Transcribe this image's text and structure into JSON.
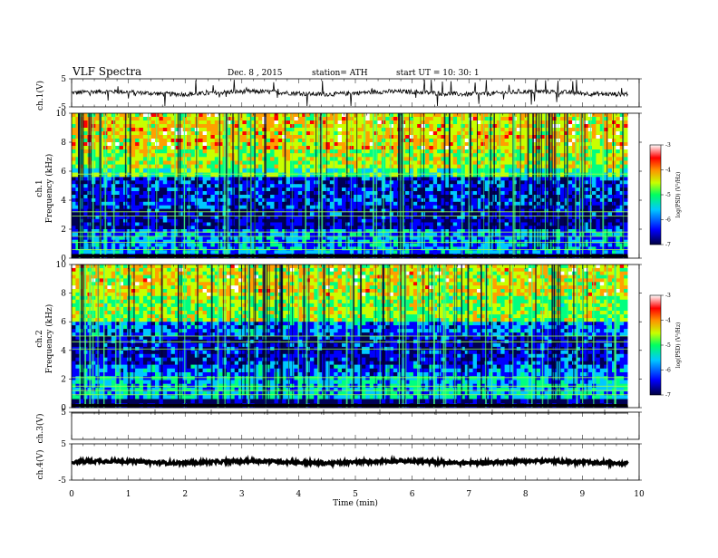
{
  "header": {
    "title": "VLF Spectra",
    "date": "Dec. 8 , 2015",
    "station": "station= ATH",
    "start": "start  UT =   10: 30: 1"
  },
  "chart_data": [
    {
      "type": "line",
      "name": "ch1-waveform",
      "ylabel": "ch.1(V)",
      "ylim": [
        -5,
        5
      ],
      "yticks": [
        "5",
        "-5"
      ],
      "baseline": 0,
      "color": "#000000"
    },
    {
      "type": "heatmap",
      "name": "ch1-spectrogram",
      "ylabel_channel": "ch.1",
      "ylabel": "Frequency  (kHz)",
      "ylim": [
        0,
        10
      ],
      "yticks": [
        "0",
        "2",
        "4",
        "6",
        "8",
        "10"
      ],
      "colorbar": {
        "label": "log(PSD) (V²/Hz)",
        "range": [
          -7,
          -3
        ],
        "ticks": [
          "-3",
          "-4",
          "-5",
          "-6",
          "-7"
        ]
      }
    },
    {
      "type": "heatmap",
      "name": "ch2-spectrogram",
      "ylabel_channel": "ch.2",
      "ylabel": "Frequency  (kHz)",
      "ylim": [
        0,
        10
      ],
      "yticks": [
        "0",
        "2",
        "4",
        "6",
        "8",
        "10"
      ],
      "colorbar": {
        "label": "log(PSD) (V²/Hz)",
        "range": [
          -7,
          -3
        ],
        "ticks": [
          "-3",
          "-4",
          "-5",
          "-6",
          "-7"
        ]
      }
    },
    {
      "type": "line",
      "name": "ch3-waveform",
      "ylabel": "ch.3(V)",
      "ylim": [
        -5,
        5
      ],
      "yticks": [
        "5"
      ],
      "baseline": 5,
      "color": "#000000"
    },
    {
      "type": "line",
      "name": "ch4-waveform",
      "ylabel": "ch.4(V)",
      "ylim": [
        -5,
        5
      ],
      "yticks": [
        "5",
        "-5"
      ],
      "baseline": 0,
      "color": "#000000"
    }
  ],
  "xaxis": {
    "label": "Time  (min)",
    "range": [
      0,
      10
    ],
    "ticks": [
      "0",
      "1",
      "2",
      "3",
      "4",
      "5",
      "6",
      "7",
      "8",
      "9",
      "10"
    ],
    "data_end": 9.8
  },
  "colormap": [
    "#000055",
    "#0000ff",
    "#00c8ff",
    "#00ff80",
    "#c8ff00",
    "#ffa000",
    "#ff0000",
    "#ffffff"
  ]
}
